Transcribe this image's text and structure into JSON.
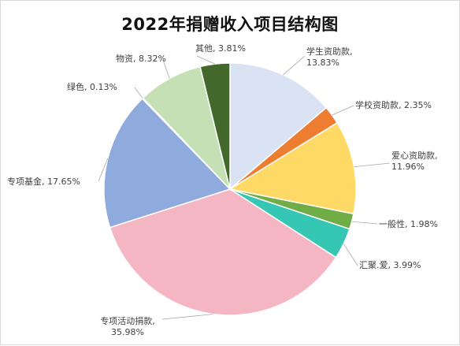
{
  "chart_data": {
    "type": "pie",
    "title": "2022年捐赠收入项目结构图",
    "start_angle_deg": 0,
    "direction": "clockwise",
    "slices": [
      {
        "name": "学生资助款",
        "value": 13.83,
        "label_lines": [
          "学生资助款,",
          "13.83%"
        ],
        "color": "#dae3f3"
      },
      {
        "name": "学校资助款",
        "value": 2.35,
        "label_lines": [
          "学校资助款, 2.35%"
        ],
        "color": "#ed7d31"
      },
      {
        "name": "爱心资助款",
        "value": 11.96,
        "label_lines": [
          "爱心资助款,",
          "11.96%"
        ],
        "color": "#ffd966"
      },
      {
        "name": "一般性",
        "value": 1.98,
        "label_lines": [
          "一般性, 1.98%"
        ],
        "color": "#70ad47"
      },
      {
        "name": "汇聚.爱",
        "value": 3.99,
        "label_lines": [
          "汇聚.爱, 3.99%"
        ],
        "color": "#36c6b4"
      },
      {
        "name": "专项活动捐款",
        "value": 35.98,
        "label_lines": [
          "专项活动捐款,",
          "35.98%"
        ],
        "color": "#f4b6c2"
      },
      {
        "name": "专项基金",
        "value": 17.65,
        "label_lines": [
          "专项基金, 17.65%"
        ],
        "color": "#8faadc"
      },
      {
        "name": "绿色",
        "value": 0.13,
        "label_lines": [
          "绿色, 0.13%"
        ],
        "color": "#d9d9d9"
      },
      {
        "name": "物资",
        "value": 8.32,
        "label_lines": [
          "物资, 8.32%"
        ],
        "color": "#c5e0b4"
      },
      {
        "name": "其他",
        "value": 3.81,
        "label_lines": [
          "其他, 3.81%"
        ],
        "color": "#43682b"
      }
    ]
  }
}
